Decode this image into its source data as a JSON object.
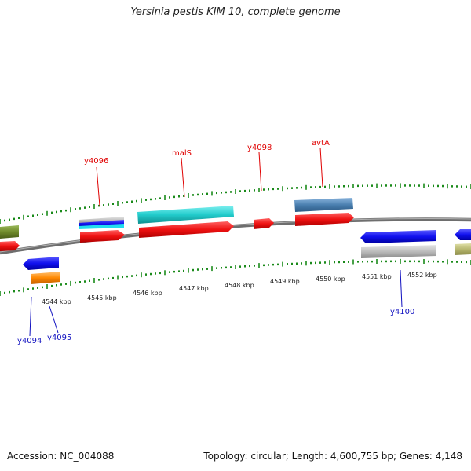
{
  "title": "Yersinia pestis KIM 10, complete genome",
  "footer": {
    "accession": "Accession: NC_004088",
    "summary": "Topology: circular; Length: 4,600,755 bp; Genes: 4,148"
  },
  "ticks": {
    "labels": [
      "4544 kbp",
      "4545 kbp",
      "4546 kbp",
      "4547 kbp",
      "4548 kbp",
      "4549 kbp",
      "4550 kbp",
      "4551 kbp",
      "4552 kbp"
    ]
  },
  "genes": {
    "top": [
      "y4096",
      "malS",
      "y4098",
      "avtA"
    ],
    "bottom": [
      "y4094",
      "y4095",
      "y4100"
    ]
  },
  "colors": {
    "backbone": "#7a7a7a",
    "tick": "#1a8a1a",
    "top_label": "#e00000",
    "bottom_label": "#1010c0",
    "red": "#ee1111",
    "blue": "#1010ee",
    "cyan": "#22cccc",
    "steel": "#4a7fb0",
    "gray": "#bbbbbb",
    "orange": "#ff8800",
    "olive": "#6f8a2a",
    "khaki": "#b8b870"
  }
}
